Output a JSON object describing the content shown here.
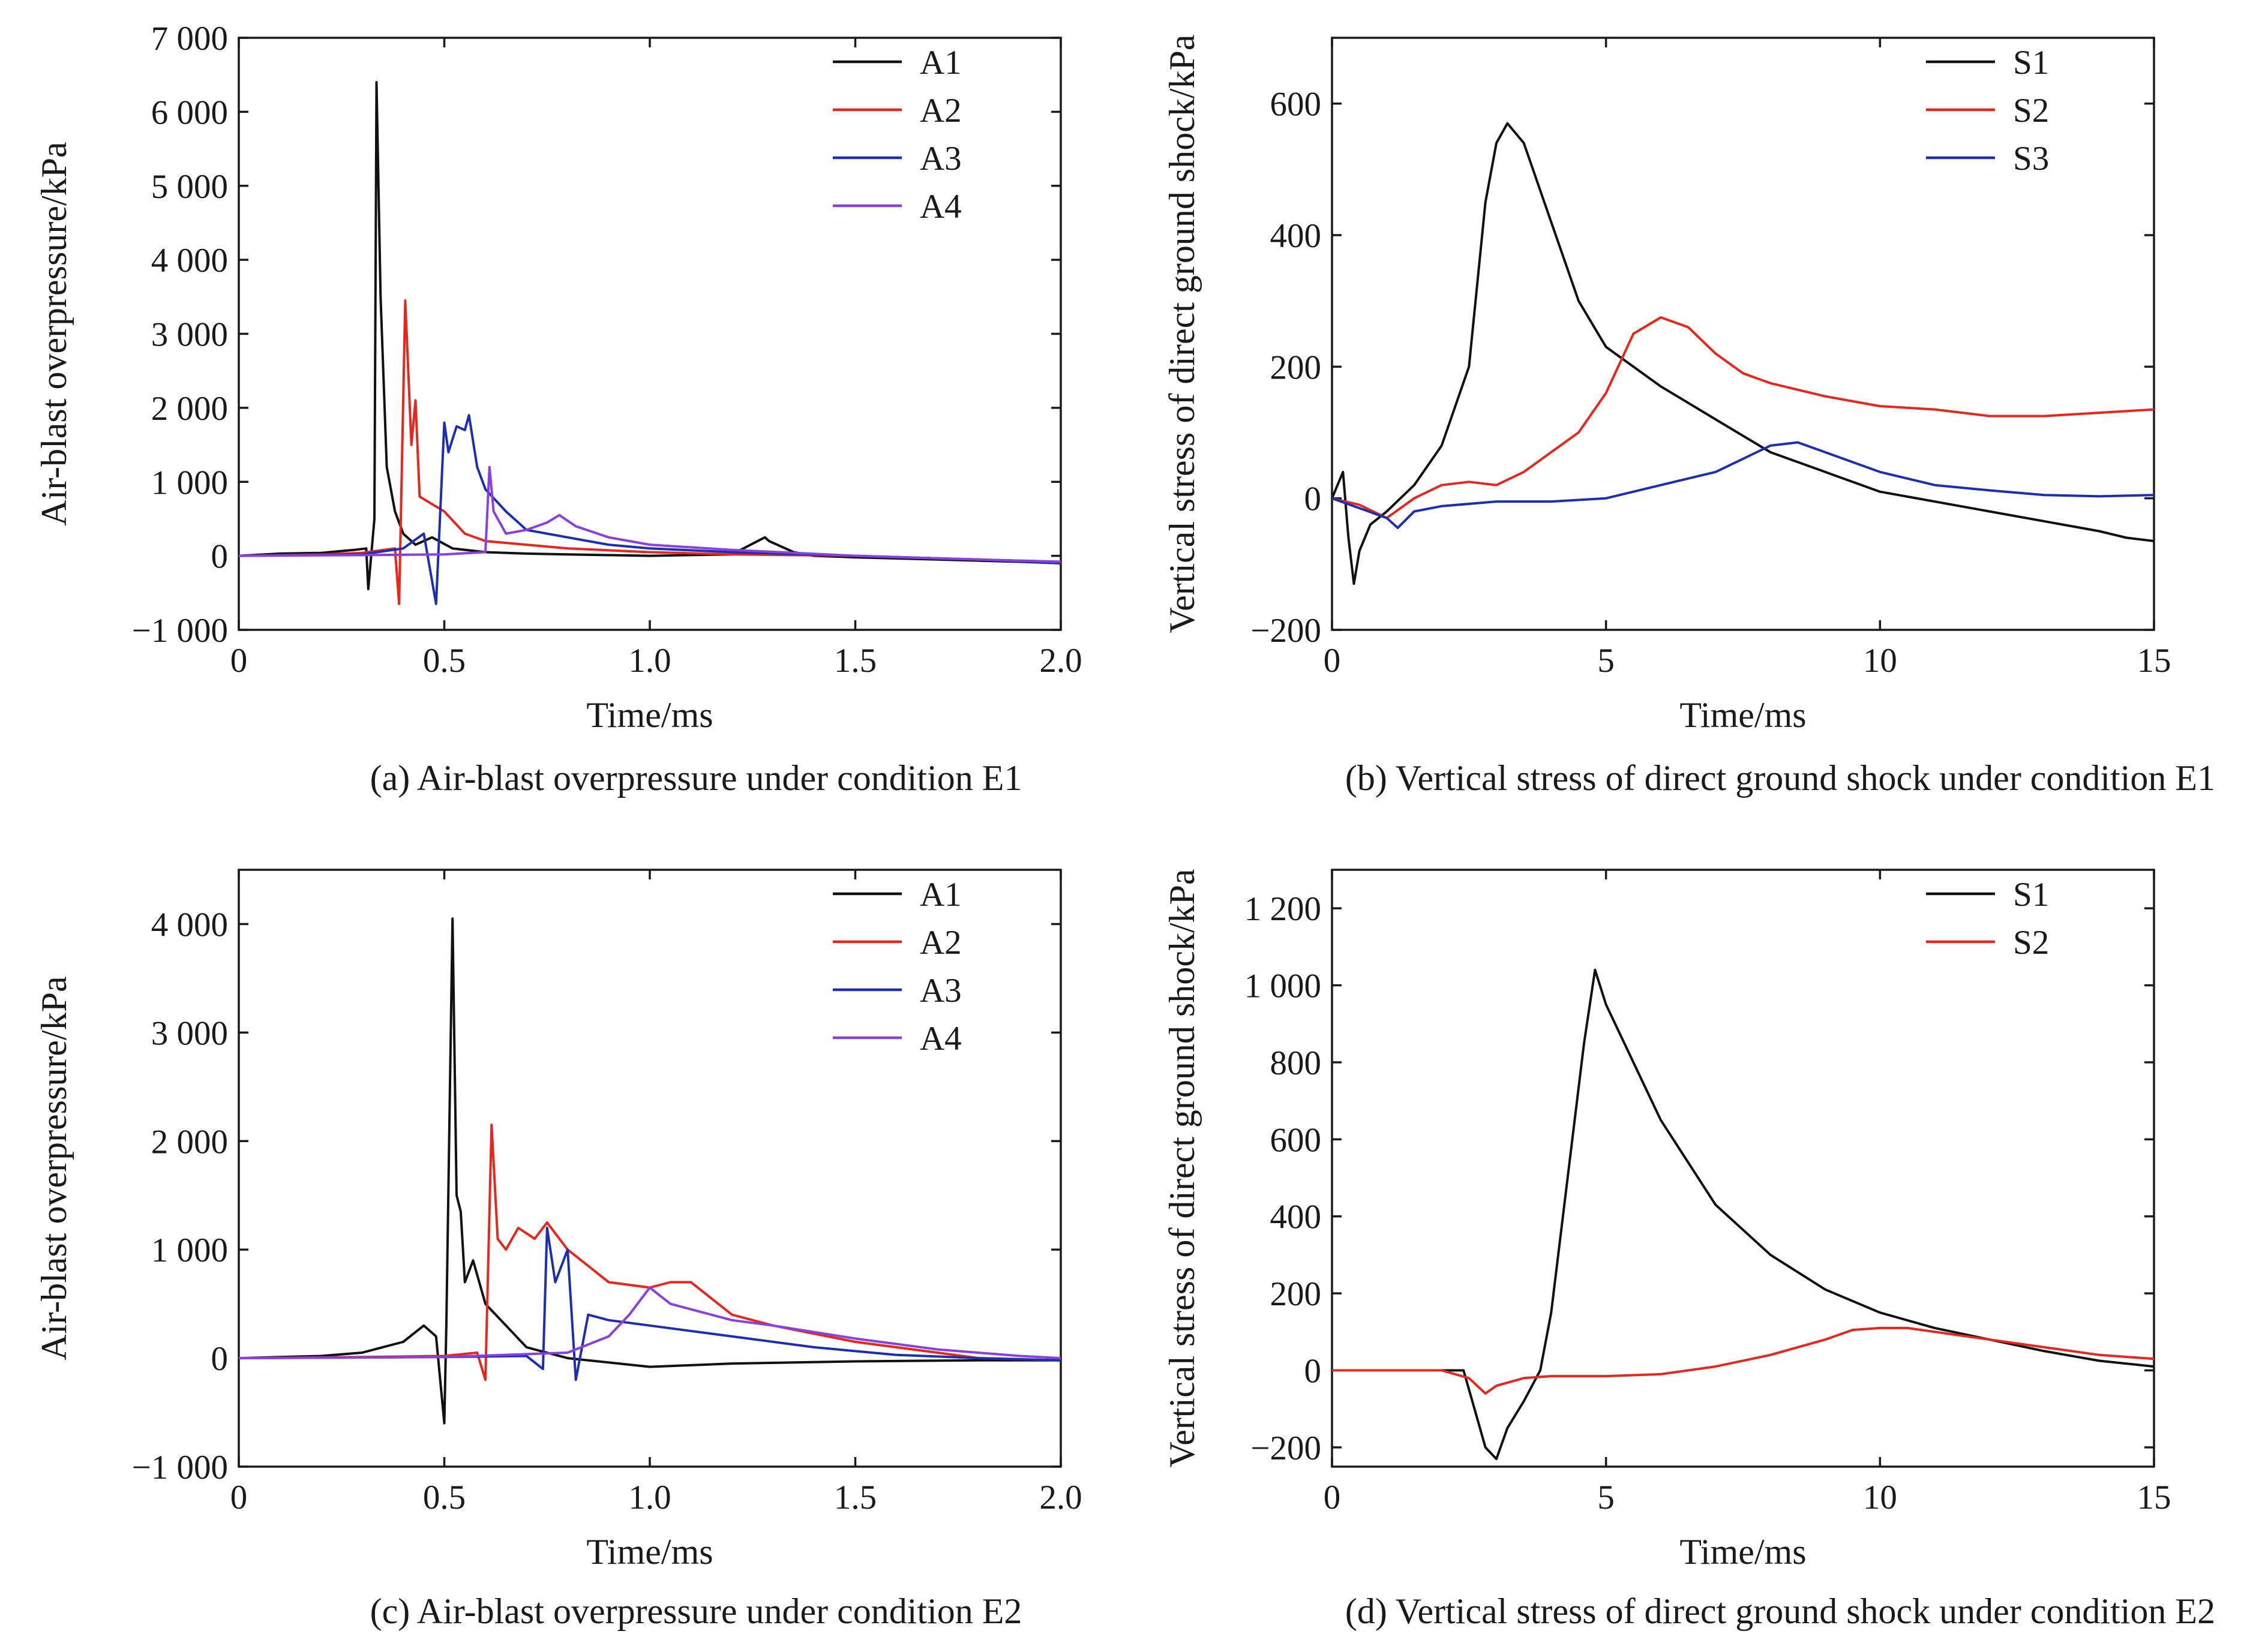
{
  "colors": {
    "A1": "#111111",
    "A2": "#e8261c",
    "A3": "#1c2fb4",
    "A4": "#8a3fe0",
    "S1": "#111111",
    "S2": "#e8261c",
    "S3": "#1c2fb4"
  },
  "chart_data": [
    {
      "id": "a",
      "type": "line",
      "caption": "(a) Air-blast overpressure under condition E1",
      "xlabel": "Time/ms",
      "ylabel": "Air-blast overpressure/kPa",
      "xlim": [
        0,
        2.0
      ],
      "ylim": [
        -1000,
        7000
      ],
      "xticks": [
        0,
        0.5,
        1.0,
        1.5,
        2.0
      ],
      "xtick_labels": [
        "0",
        "0.5",
        "1.0",
        "1.5",
        "2.0"
      ],
      "yticks": [
        -1000,
        0,
        1000,
        2000,
        3000,
        4000,
        5000,
        6000,
        7000
      ],
      "ytick_labels": [
        "−1 000",
        "0",
        "1 000",
        "2 000",
        "3 000",
        "4 000",
        "5 000",
        "6 000",
        "7 000"
      ],
      "legend_position": "top-right",
      "series": [
        {
          "name": "A1",
          "color_key": "A1",
          "x": [
            0,
            0.1,
            0.2,
            0.28,
            0.31,
            0.315,
            0.33,
            0.335,
            0.345,
            0.36,
            0.38,
            0.4,
            0.43,
            0.47,
            0.52,
            0.6,
            0.7,
            0.8,
            1.0,
            1.2,
            1.28,
            1.29,
            1.31,
            1.35,
            1.4,
            1.5,
            1.7,
            1.9,
            2.0
          ],
          "y": [
            0,
            30,
            40,
            80,
            100,
            -450,
            500,
            6400,
            3500,
            1200,
            600,
            300,
            150,
            250,
            100,
            50,
            30,
            20,
            0,
            20,
            250,
            200,
            150,
            50,
            0,
            -20,
            -50,
            -80,
            -100
          ]
        },
        {
          "name": "A2",
          "color_key": "A2",
          "x": [
            0,
            0.2,
            0.3,
            0.38,
            0.39,
            0.405,
            0.42,
            0.43,
            0.44,
            0.47,
            0.5,
            0.55,
            0.6,
            0.7,
            0.8,
            1.0,
            1.2,
            1.5,
            1.8,
            2.0
          ],
          "y": [
            0,
            20,
            40,
            100,
            -650,
            3450,
            1500,
            2100,
            800,
            700,
            600,
            300,
            200,
            150,
            100,
            50,
            20,
            0,
            -50,
            -80
          ]
        },
        {
          "name": "A3",
          "color_key": "A3",
          "x": [
            0,
            0.3,
            0.4,
            0.45,
            0.48,
            0.5,
            0.51,
            0.53,
            0.55,
            0.56,
            0.58,
            0.6,
            0.65,
            0.7,
            0.75,
            0.8,
            0.9,
            1.0,
            1.2,
            1.5,
            1.8,
            2.0
          ],
          "y": [
            0,
            20,
            100,
            300,
            -650,
            1800,
            1400,
            1750,
            1700,
            1900,
            1200,
            900,
            600,
            350,
            300,
            250,
            150,
            100,
            50,
            0,
            -50,
            -100
          ]
        },
        {
          "name": "A4",
          "color_key": "A4",
          "x": [
            0,
            0.3,
            0.5,
            0.6,
            0.61,
            0.62,
            0.65,
            0.7,
            0.75,
            0.78,
            0.82,
            0.9,
            1.0,
            1.2,
            1.5,
            1.8,
            2.0
          ],
          "y": [
            0,
            10,
            20,
            50,
            1200,
            600,
            300,
            350,
            450,
            550,
            400,
            250,
            150,
            80,
            0,
            -50,
            -80
          ]
        }
      ]
    },
    {
      "id": "b",
      "type": "line",
      "caption": "(b) Vertical stress of direct ground shock under condition E1",
      "xlabel": "Time/ms",
      "ylabel": "Vertical stress of direct ground shock/kPa",
      "xlim": [
        0,
        15
      ],
      "ylim": [
        -200,
        700
      ],
      "xticks": [
        0,
        5,
        10,
        15
      ],
      "xtick_labels": [
        "0",
        "5",
        "10",
        "15"
      ],
      "yticks": [
        -200,
        0,
        200,
        400,
        600
      ],
      "ytick_labels": [
        "−200",
        "0",
        "200",
        "400",
        "600"
      ],
      "legend_position": "top-right",
      "series": [
        {
          "name": "S1",
          "color_key": "S1",
          "x": [
            0,
            0.2,
            0.3,
            0.4,
            0.5,
            0.7,
            1.0,
            1.5,
            2.0,
            2.5,
            2.8,
            3.0,
            3.2,
            3.5,
            4.0,
            4.5,
            5.0,
            6.0,
            7.0,
            8.0,
            9.0,
            10.0,
            12.0,
            14.0,
            14.5,
            15.0
          ],
          "y": [
            0,
            40,
            -60,
            -130,
            -80,
            -40,
            -20,
            20,
            80,
            200,
            450,
            540,
            570,
            540,
            420,
            300,
            230,
            170,
            120,
            70,
            40,
            10,
            -20,
            -50,
            -60,
            -65
          ]
        },
        {
          "name": "S2",
          "color_key": "S2",
          "x": [
            0,
            0.5,
            1.0,
            1.5,
            2.0,
            2.5,
            3.0,
            3.5,
            4.0,
            4.5,
            5.0,
            5.5,
            6.0,
            6.5,
            7.0,
            7.5,
            8.0,
            9.0,
            10.0,
            11.0,
            12.0,
            13.0,
            14.0,
            15.0
          ],
          "y": [
            0,
            -10,
            -30,
            0,
            20,
            25,
            20,
            40,
            70,
            100,
            160,
            250,
            275,
            260,
            220,
            190,
            175,
            155,
            140,
            135,
            125,
            125,
            130,
            135
          ]
        },
        {
          "name": "S3",
          "color_key": "S3",
          "x": [
            0,
            0.5,
            1.0,
            1.2,
            1.5,
            2.0,
            3.0,
            4.0,
            5.0,
            6.0,
            7.0,
            7.5,
            8.0,
            8.5,
            9.0,
            10.0,
            11.0,
            12.0,
            13.0,
            14.0,
            15.0
          ],
          "y": [
            0,
            -15,
            -30,
            -45,
            -20,
            -12,
            -5,
            -5,
            0,
            20,
            40,
            60,
            80,
            85,
            70,
            40,
            20,
            12,
            5,
            3,
            5
          ]
        }
      ]
    },
    {
      "id": "c",
      "type": "line",
      "caption": "(c) Air-blast overpressure under condition E2",
      "xlabel": "Time/ms",
      "ylabel": "Air-blast overpressure/kPa",
      "xlim": [
        0,
        2.0
      ],
      "ylim": [
        -1000,
        4500
      ],
      "xticks": [
        0,
        0.5,
        1.0,
        1.5,
        2.0
      ],
      "xtick_labels": [
        "0",
        "0.5",
        "1.0",
        "1.5",
        "2.0"
      ],
      "yticks": [
        -1000,
        0,
        1000,
        2000,
        3000,
        4000
      ],
      "ytick_labels": [
        "−1 000",
        "0",
        "1 000",
        "2 000",
        "3 000",
        "4 000"
      ],
      "legend_position": "top-right",
      "series": [
        {
          "name": "A1",
          "color_key": "A1",
          "x": [
            0,
            0.2,
            0.3,
            0.4,
            0.45,
            0.48,
            0.5,
            0.505,
            0.52,
            0.53,
            0.54,
            0.55,
            0.57,
            0.6,
            0.65,
            0.7,
            0.8,
            1.0,
            1.2,
            1.5,
            1.8,
            2.0
          ],
          "y": [
            0,
            20,
            50,
            150,
            300,
            200,
            -600,
            300,
            4050,
            1500,
            1350,
            700,
            900,
            500,
            300,
            100,
            0,
            -80,
            -50,
            -30,
            -20,
            -20
          ]
        },
        {
          "name": "A2",
          "color_key": "A2",
          "x": [
            0,
            0.3,
            0.5,
            0.58,
            0.6,
            0.615,
            0.63,
            0.65,
            0.68,
            0.72,
            0.75,
            0.8,
            0.85,
            0.9,
            1.0,
            1.05,
            1.1,
            1.15,
            1.2,
            1.3,
            1.5,
            1.7,
            1.8,
            2.0
          ],
          "y": [
            0,
            10,
            20,
            50,
            -200,
            2150,
            1100,
            1000,
            1200,
            1100,
            1250,
            1000,
            850,
            700,
            650,
            700,
            700,
            550,
            400,
            300,
            150,
            50,
            0,
            -20
          ]
        },
        {
          "name": "A3",
          "color_key": "A3",
          "x": [
            0,
            0.5,
            0.7,
            0.74,
            0.75,
            0.77,
            0.8,
            0.82,
            0.85,
            0.9,
            1.0,
            1.2,
            1.4,
            1.6,
            1.8,
            2.0
          ],
          "y": [
            0,
            10,
            20,
            -100,
            1200,
            700,
            1000,
            -200,
            400,
            350,
            300,
            200,
            100,
            30,
            0,
            -20
          ]
        },
        {
          "name": "A4",
          "color_key": "A4",
          "x": [
            0,
            0.5,
            0.8,
            0.9,
            0.95,
            1.0,
            1.05,
            1.1,
            1.2,
            1.3,
            1.5,
            1.7,
            1.9,
            2.0
          ],
          "y": [
            0,
            10,
            50,
            200,
            400,
            650,
            500,
            450,
            350,
            300,
            180,
            80,
            20,
            0
          ]
        }
      ]
    },
    {
      "id": "d",
      "type": "line",
      "caption": "(d) Vertical stress of direct ground shock under condition E2",
      "xlabel": "Time/ms",
      "ylabel": "Vertical stress of direct ground shock/kPa",
      "xlim": [
        0,
        15
      ],
      "ylim": [
        -250,
        1300
      ],
      "xticks": [
        0,
        5,
        10,
        15
      ],
      "xtick_labels": [
        "0",
        "5",
        "10",
        "15"
      ],
      "yticks": [
        -200,
        0,
        200,
        400,
        600,
        800,
        1000,
        1200
      ],
      "ytick_labels": [
        "−200",
        "0",
        "200",
        "400",
        "600",
        "800",
        "1 000",
        "1 200"
      ],
      "legend_position": "top-right",
      "series": [
        {
          "name": "S1",
          "color_key": "S1",
          "x": [
            0,
            1.0,
            2.0,
            2.4,
            2.6,
            2.8,
            3.0,
            3.2,
            3.5,
            3.8,
            4.0,
            4.3,
            4.6,
            4.8,
            5.0,
            5.5,
            6.0,
            7.0,
            8.0,
            9.0,
            10.0,
            11.0,
            12.0,
            13.0,
            14.0,
            15.0
          ],
          "y": [
            0,
            0,
            0,
            0,
            -100,
            -200,
            -230,
            -150,
            -80,
            0,
            150,
            500,
            850,
            1040,
            950,
            800,
            650,
            430,
            300,
            210,
            150,
            110,
            80,
            50,
            25,
            10
          ]
        },
        {
          "name": "S2",
          "color_key": "S2",
          "x": [
            0,
            2.0,
            2.5,
            2.8,
            3.0,
            3.5,
            4.0,
            5.0,
            6.0,
            7.0,
            8.0,
            9.0,
            9.5,
            10.0,
            10.5,
            11.0,
            12.0,
            13.0,
            14.0,
            15.0
          ],
          "y": [
            0,
            0,
            -20,
            -60,
            -40,
            -20,
            -15,
            -15,
            -10,
            10,
            40,
            80,
            105,
            110,
            110,
            100,
            80,
            60,
            40,
            30
          ]
        }
      ]
    }
  ]
}
